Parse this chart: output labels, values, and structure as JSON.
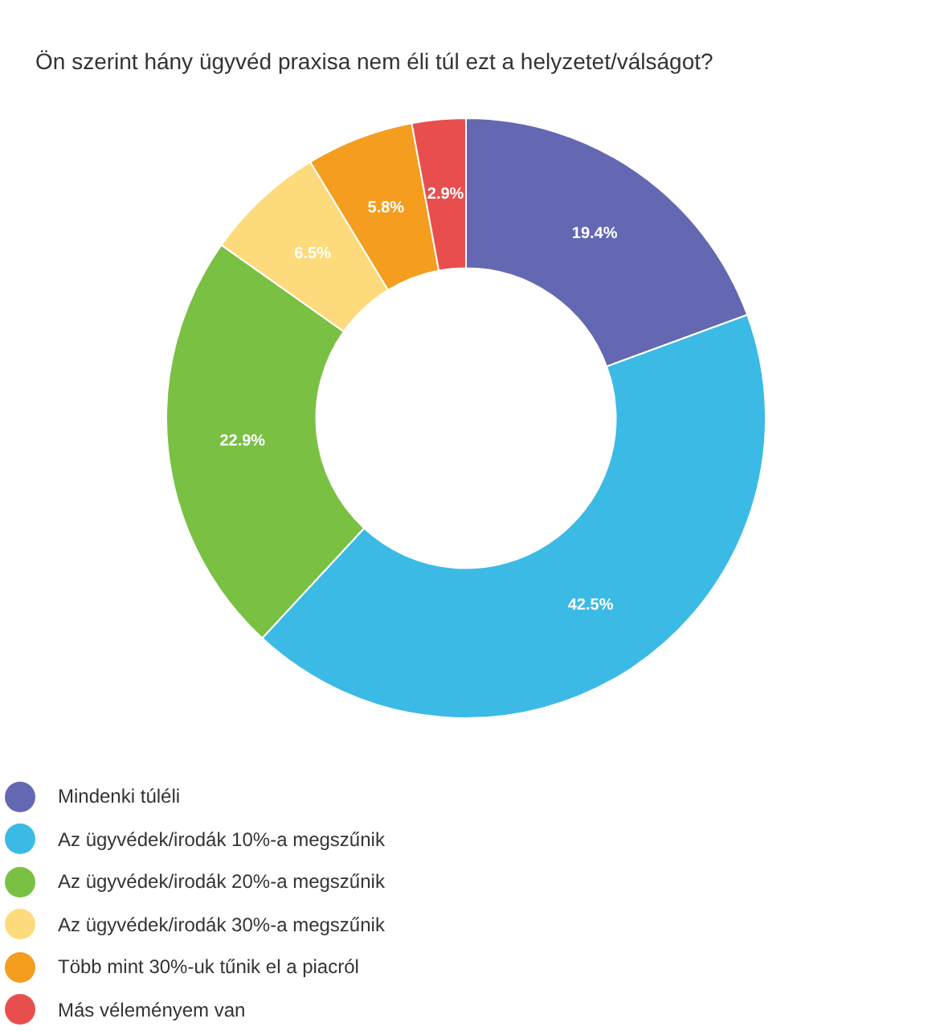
{
  "chart_data": {
    "type": "donut",
    "title": "Ön szerint hány ügyvéd praxisa nem éli túl ezt a helyzetet/válságot?",
    "categories": [
      "Mindenki túléli",
      "Az ügyvédek/irodák 10%-a megszűnik",
      "Az ügyvédek/irodák 20%-a megszűnik",
      "Az ügyvédek/irodák 30%-a megszűnik",
      "Több mint 30%-uk tűnik el a piacról",
      "Más véleményem van"
    ],
    "values": [
      19.4,
      42.5,
      22.9,
      6.5,
      5.8,
      2.9
    ],
    "colors": [
      "#6468b2",
      "#3bbae5",
      "#79c043",
      "#fddb7c",
      "#f49d1f",
      "#e84e4e"
    ],
    "value_labels": [
      "19.4%",
      "42.5%",
      "22.9%",
      "6.5%",
      "5.8%",
      "2.9%"
    ],
    "legend": "bottom left"
  }
}
